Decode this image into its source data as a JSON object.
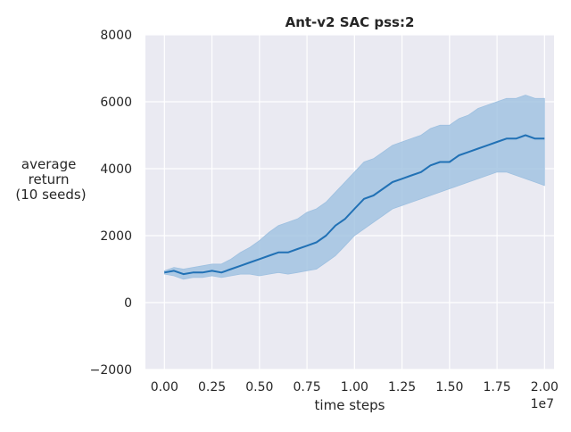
{
  "chart_data": {
    "type": "line",
    "title": "Ant-v2 SAC pss:2",
    "xlabel": "time steps",
    "ylabel": [
      "average",
      "return",
      "(10 seeds)"
    ],
    "x_offset_label": "1e7",
    "xlim": [
      -0.1,
      2.05
    ],
    "ylim": [
      -2000,
      8000
    ],
    "xticks": [
      0.0,
      0.25,
      0.5,
      0.75,
      1.0,
      1.25,
      1.5,
      1.75,
      2.0
    ],
    "xtick_labels": [
      "0.00",
      "0.25",
      "0.50",
      "0.75",
      "1.00",
      "1.25",
      "1.50",
      "1.75",
      "2.00"
    ],
    "yticks": [
      -2000,
      0,
      2000,
      4000,
      6000,
      8000
    ],
    "ytick_labels": [
      "−2000",
      "0",
      "2000",
      "4000",
      "6000",
      "8000"
    ],
    "grid": true,
    "series": [
      {
        "color": "#2171b5",
        "band_color": "#9ec0e0",
        "x": [
          0.0,
          0.05,
          0.1,
          0.15,
          0.2,
          0.25,
          0.3,
          0.35,
          0.4,
          0.45,
          0.5,
          0.55,
          0.6,
          0.65,
          0.7,
          0.75,
          0.8,
          0.85,
          0.9,
          0.95,
          1.0,
          1.05,
          1.1,
          1.15,
          1.2,
          1.25,
          1.3,
          1.35,
          1.4,
          1.45,
          1.5,
          1.55,
          1.6,
          1.65,
          1.7,
          1.75,
          1.8,
          1.85,
          1.9,
          1.95,
          2.0
        ],
        "mean": [
          900,
          950,
          850,
          900,
          900,
          950,
          900,
          1000,
          1100,
          1200,
          1300,
          1400,
          1500,
          1500,
          1600,
          1700,
          1800,
          2000,
          2300,
          2500,
          2800,
          3100,
          3200,
          3400,
          3600,
          3700,
          3800,
          3900,
          4100,
          4200,
          4200,
          4400,
          4500,
          4600,
          4700,
          4800,
          4900,
          4900,
          5000,
          4900,
          4900
        ],
        "lower": [
          850,
          800,
          700,
          750,
          750,
          800,
          750,
          800,
          850,
          850,
          800,
          850,
          900,
          850,
          900,
          950,
          1000,
          1200,
          1400,
          1700,
          2000,
          2200,
          2400,
          2600,
          2800,
          2900,
          3000,
          3100,
          3200,
          3300,
          3400,
          3500,
          3600,
          3700,
          3800,
          3900,
          3900,
          3800,
          3700,
          3600,
          3500
        ],
        "upper": [
          950,
          1050,
          1000,
          1050,
          1100,
          1150,
          1150,
          1300,
          1500,
          1650,
          1850,
          2100,
          2300,
          2400,
          2500,
          2700,
          2800,
          3000,
          3300,
          3600,
          3900,
          4200,
          4300,
          4500,
          4700,
          4800,
          4900,
          5000,
          5200,
          5300,
          5300,
          5500,
          5600,
          5800,
          5900,
          6000,
          6100,
          6100,
          6200,
          6100,
          6100
        ]
      }
    ]
  }
}
